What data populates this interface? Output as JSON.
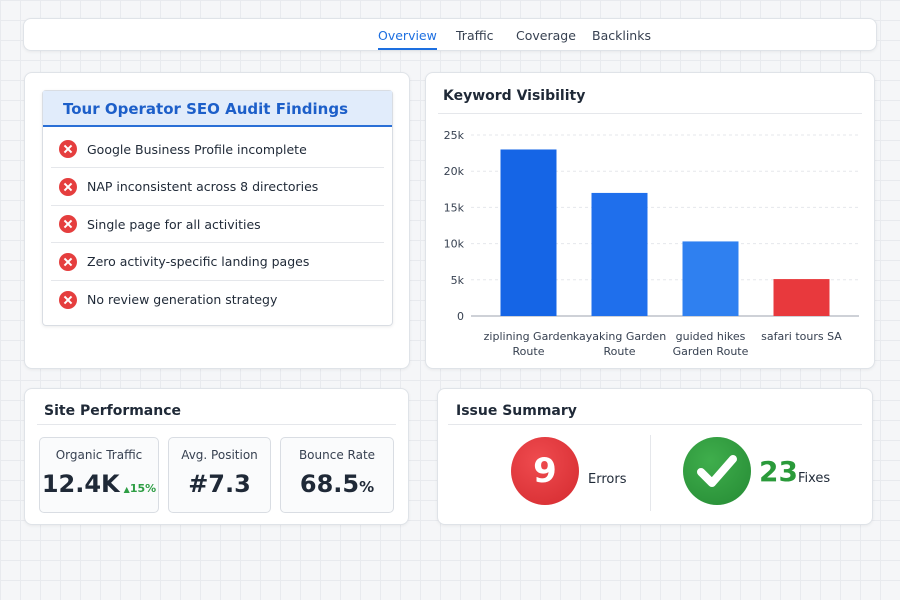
{
  "nav": {
    "tabs": [
      "Overview",
      "Traffic",
      "Coverage",
      "Backlinks"
    ]
  },
  "findings": {
    "title": "Tour Operator SEO Audit Findings",
    "items": [
      "Google Business Profile incomplete",
      "NAP inconsistent across 8 directories",
      "Single page for all activities",
      "Zero activity-specific landing pages",
      "No review generation strategy"
    ]
  },
  "chart_data": {
    "type": "bar",
    "title": "Keyword Visibility",
    "categories": [
      "ziplining Garden Route",
      "kayaking Garden Route",
      "guided hikes Garden Route",
      "safari tours SA"
    ],
    "values": [
      23000,
      17000,
      10300,
      5100
    ],
    "colors": [
      "#1565e6",
      "#1f6fec",
      "#2f80f0",
      "#e8393d"
    ],
    "ylim": [
      0,
      25000
    ],
    "yticks": [
      0,
      {
        "value": 5000,
        "label": "5k"
      },
      {
        "value": 10000,
        "label": "10k"
      },
      {
        "value": 15000,
        "label": "15k"
      },
      {
        "value": 20000,
        "label": "20k"
      },
      {
        "value": 25000,
        "label": "25k"
      }
    ],
    "grid": true
  },
  "performance": {
    "title": "Site Performance",
    "metrics": [
      {
        "label": "Organic Traffic",
        "value": "12.4K",
        "change": "15%"
      },
      {
        "label": "Avg. Position",
        "value": "#7.3"
      },
      {
        "label": "Bounce Rate",
        "value": "68.5",
        "unit": "%"
      }
    ]
  },
  "issues": {
    "title": "Issue Summary",
    "errors": {
      "count": "9",
      "label": "Errors"
    },
    "fixes": {
      "count": "23",
      "label": "Fixes"
    }
  }
}
